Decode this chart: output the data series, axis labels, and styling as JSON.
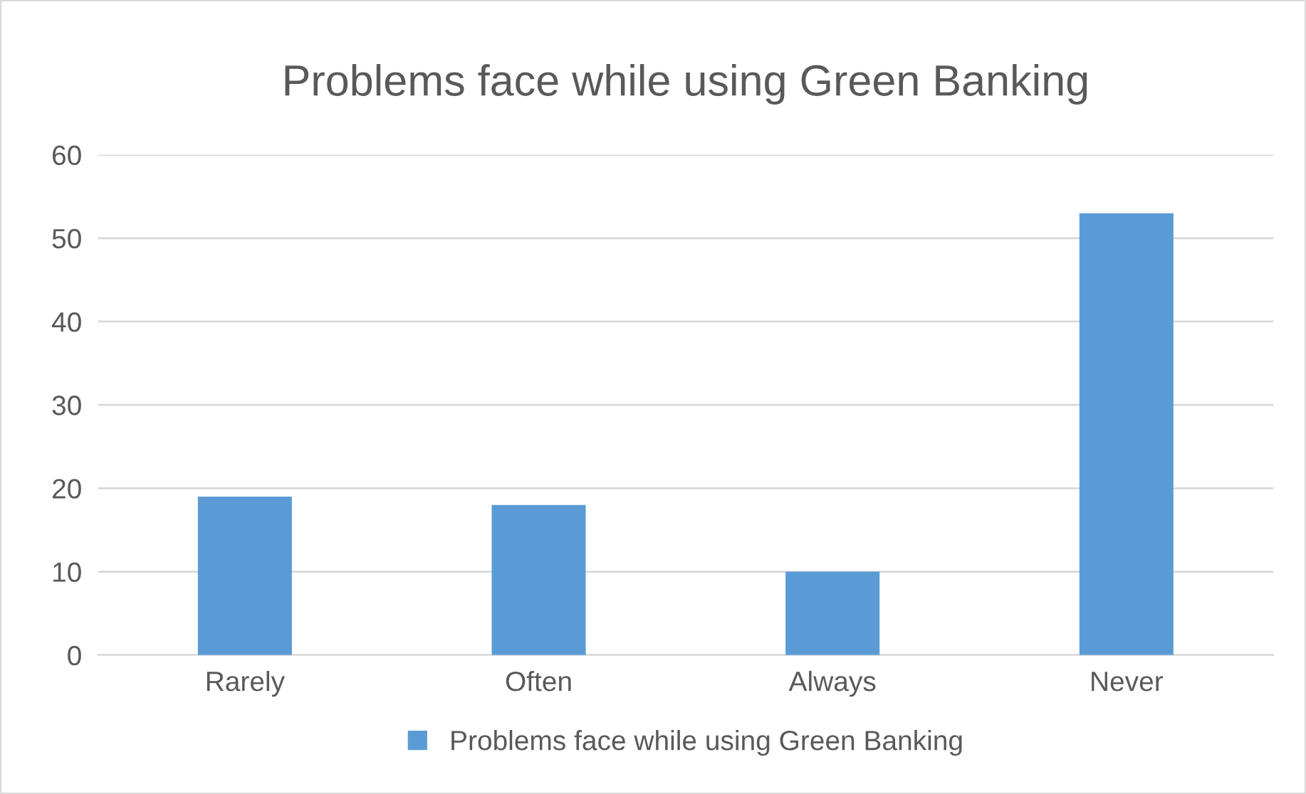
{
  "chart_data": {
    "type": "bar",
    "title": "Problems face while using Green Banking",
    "categories": [
      "Rarely",
      "Often",
      "Always",
      "Never"
    ],
    "series": [
      {
        "name": "Problems face while using Green Banking",
        "color": "#5b9bd5",
        "values": [
          19,
          18,
          10,
          53
        ]
      }
    ],
    "ylim": [
      0,
      60
    ],
    "yticks": [
      0,
      10,
      20,
      30,
      40,
      50,
      60
    ],
    "grid": "y",
    "legend": "bottom"
  }
}
